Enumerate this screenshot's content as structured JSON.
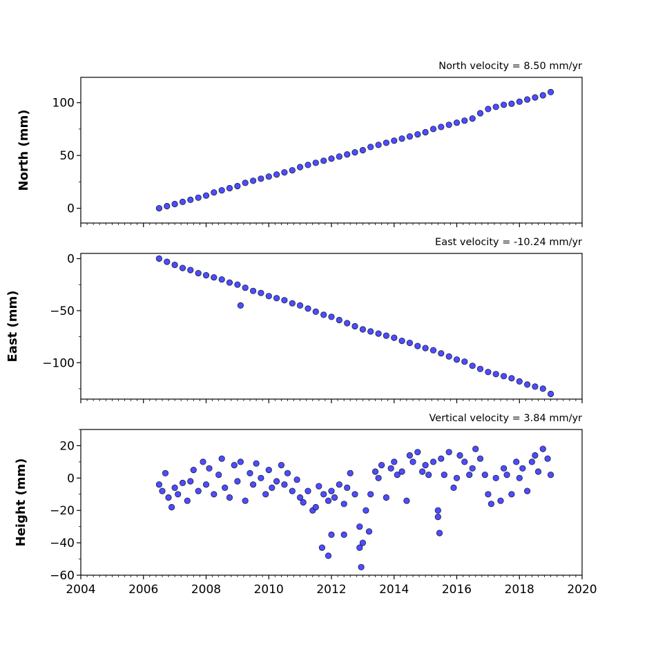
{
  "chart_data": [
    {
      "type": "scatter",
      "title": "North velocity = 8.50 mm/yr",
      "xlabel": "",
      "ylabel": "North (mm)",
      "xlim": [
        2004,
        2020
      ],
      "ylim": [
        -14,
        124
      ],
      "yticks": [
        0,
        50,
        100
      ],
      "ytick_labels": [
        "0",
        "50",
        "100"
      ],
      "xticks": [
        2004,
        2006,
        2008,
        2010,
        2012,
        2014,
        2016,
        2018,
        2020
      ],
      "xtick_labels": [],
      "marker_color": "#4d4dff",
      "edge_color": "#1a1a40",
      "x": [
        2006.5,
        2006.75,
        2007.0,
        2007.25,
        2007.5,
        2007.75,
        2008.0,
        2008.25,
        2008.5,
        2008.75,
        2009.0,
        2009.25,
        2009.5,
        2009.75,
        2010.0,
        2010.25,
        2010.5,
        2010.75,
        2011.0,
        2011.25,
        2011.5,
        2011.75,
        2012.0,
        2012.25,
        2012.5,
        2012.75,
        2013.0,
        2013.25,
        2013.5,
        2013.75,
        2014.0,
        2014.25,
        2014.5,
        2014.75,
        2015.0,
        2015.25,
        2015.5,
        2015.75,
        2016.0,
        2016.25,
        2016.5,
        2016.75,
        2017.0,
        2017.25,
        2017.5,
        2017.75,
        2018.0,
        2018.25,
        2018.5,
        2018.75,
        2019.0
      ],
      "y": [
        0,
        2,
        4,
        6,
        8,
        10,
        12,
        15,
        17,
        19,
        21,
        24,
        26,
        28,
        30,
        32,
        34,
        36,
        39,
        41,
        43,
        45,
        47,
        49,
        51,
        53,
        55,
        58,
        60,
        62,
        64,
        66,
        68,
        70,
        72,
        75,
        77,
        79,
        81,
        83,
        85,
        90,
        94,
        96,
        98,
        99,
        101,
        103,
        105,
        107,
        110
      ]
    },
    {
      "type": "scatter",
      "title": "East velocity = -10.24 mm/yr",
      "xlabel": "",
      "ylabel": "East (mm)",
      "xlim": [
        2004,
        2020
      ],
      "ylim": [
        -135,
        5
      ],
      "yticks": [
        0,
        -50,
        -100
      ],
      "ytick_labels": [
        "0",
        "−50",
        "−100"
      ],
      "xticks": [
        2004,
        2006,
        2008,
        2010,
        2012,
        2014,
        2016,
        2018,
        2020
      ],
      "xtick_labels": [],
      "marker_color": "#4d4dff",
      "edge_color": "#1a1a40",
      "x": [
        2006.5,
        2006.75,
        2007.0,
        2007.25,
        2007.5,
        2007.75,
        2008.0,
        2008.25,
        2008.5,
        2008.75,
        2009.0,
        2009.1,
        2009.25,
        2009.5,
        2009.75,
        2010.0,
        2010.25,
        2010.5,
        2010.75,
        2011.0,
        2011.25,
        2011.5,
        2011.75,
        2012.0,
        2012.25,
        2012.5,
        2012.75,
        2013.0,
        2013.25,
        2013.5,
        2013.75,
        2014.0,
        2014.25,
        2014.5,
        2014.75,
        2015.0,
        2015.25,
        2015.5,
        2015.75,
        2016.0,
        2016.25,
        2016.5,
        2016.75,
        2017.0,
        2017.25,
        2017.5,
        2017.75,
        2018.0,
        2018.25,
        2018.5,
        2018.75,
        2019.0
      ],
      "y": [
        0,
        -3,
        -6,
        -9,
        -11,
        -14,
        -16,
        -18,
        -20,
        -23,
        -25,
        -45,
        -28,
        -31,
        -33,
        -36,
        -38,
        -40,
        -43,
        -45,
        -48,
        -51,
        -54,
        -56,
        -59,
        -62,
        -65,
        -68,
        -70,
        -72,
        -74,
        -76,
        -79,
        -81,
        -84,
        -86,
        -88,
        -91,
        -94,
        -97,
        -99,
        -103,
        -106,
        -109,
        -111,
        -113,
        -115,
        -118,
        -121,
        -123,
        -125,
        -130
      ]
    },
    {
      "type": "scatter",
      "title": "Vertical velocity = 3.84 mm/yr",
      "xlabel": "",
      "ylabel": "Height (mm)",
      "xlim": [
        2004,
        2020
      ],
      "ylim": [
        -60,
        30
      ],
      "yticks": [
        20,
        0,
        -20,
        -40,
        -60
      ],
      "ytick_labels": [
        "20",
        "0",
        "−20",
        "−40",
        "−60"
      ],
      "xticks": [
        2004,
        2006,
        2008,
        2010,
        2012,
        2014,
        2016,
        2018,
        2020
      ],
      "xtick_labels": [
        "2004",
        "2006",
        "2008",
        "2010",
        "2012",
        "2014",
        "2016",
        "2018",
        "2020"
      ],
      "marker_color": "#4d4dff",
      "edge_color": "#1a1a40",
      "x": [
        2006.5,
        2006.6,
        2006.7,
        2006.8,
        2006.9,
        2007.0,
        2007.1,
        2007.25,
        2007.4,
        2007.5,
        2007.6,
        2007.75,
        2007.9,
        2008.0,
        2008.1,
        2008.25,
        2008.4,
        2008.5,
        2008.6,
        2008.75,
        2008.9,
        2009.0,
        2009.1,
        2009.25,
        2009.4,
        2009.5,
        2009.6,
        2009.75,
        2009.9,
        2010.0,
        2010.1,
        2010.25,
        2010.4,
        2010.5,
        2010.6,
        2010.75,
        2010.9,
        2011.0,
        2011.1,
        2011.25,
        2011.4,
        2011.5,
        2011.6,
        2011.75,
        2011.9,
        2012.0,
        2012.1,
        2012.25,
        2012.4,
        2012.5,
        2012.6,
        2012.75,
        2012.9,
        2013.0,
        2013.1,
        2013.25,
        2013.4,
        2013.5,
        2013.6,
        2013.75,
        2013.9,
        2014.0,
        2014.1,
        2014.25,
        2014.4,
        2014.5,
        2014.6,
        2014.75,
        2014.9,
        2015.0,
        2015.1,
        2015.25,
        2015.4,
        2015.5,
        2015.6,
        2015.75,
        2015.9,
        2016.0,
        2016.1,
        2016.25,
        2016.4,
        2016.5,
        2016.6,
        2016.75,
        2016.9,
        2017.0,
        2017.1,
        2017.25,
        2017.4,
        2017.5,
        2017.6,
        2017.75,
        2017.9,
        2018.0,
        2018.1,
        2018.25,
        2018.4,
        2018.5,
        2018.6,
        2018.75,
        2018.9,
        2019.0,
        2011.7,
        2011.9,
        2012.0,
        2012.4,
        2012.9,
        2012.95,
        2013.2,
        2015.4,
        2015.45
      ],
      "y": [
        -4,
        -8,
        3,
        -12,
        -18,
        -6,
        -10,
        -3,
        -14,
        -2,
        5,
        -8,
        10,
        -4,
        6,
        -10,
        2,
        12,
        -6,
        -12,
        8,
        -2,
        10,
        -14,
        3,
        -4,
        9,
        0,
        -10,
        5,
        -6,
        -2,
        8,
        -4,
        3,
        -8,
        -1,
        -12,
        -15,
        -8,
        -20,
        -18,
        -5,
        -10,
        -14,
        -8,
        -12,
        -4,
        -16,
        -6,
        3,
        -10,
        -30,
        -40,
        -20,
        -10,
        4,
        0,
        8,
        -12,
        6,
        10,
        2,
        4,
        -14,
        14,
        10,
        16,
        4,
        8,
        2,
        10,
        -20,
        12,
        2,
        16,
        -6,
        0,
        14,
        10,
        2,
        6,
        18,
        12,
        2,
        -10,
        -16,
        0,
        -14,
        6,
        2,
        -10,
        10,
        0,
        6,
        -8,
        10,
        14,
        4,
        18,
        12,
        2,
        -43,
        -48,
        -35,
        -35,
        -43,
        -55,
        -33,
        -24,
        -34
      ]
    }
  ]
}
